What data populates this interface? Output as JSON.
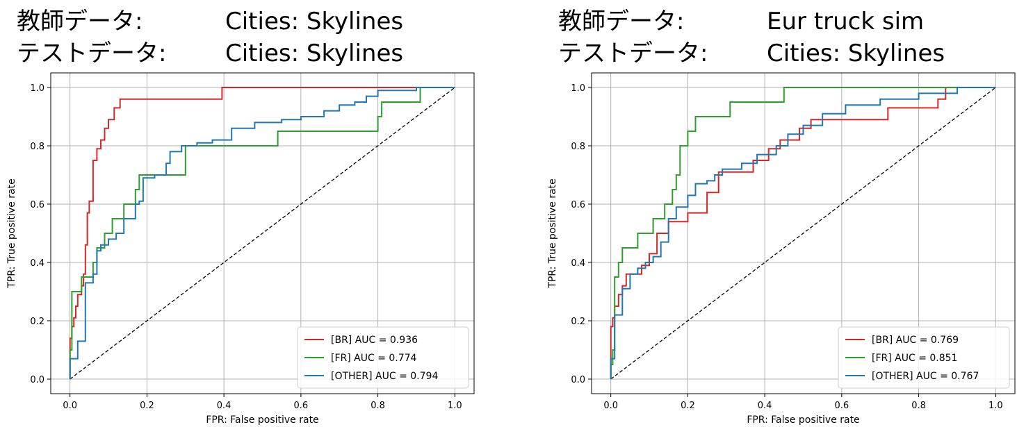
{
  "chart_data": [
    {
      "type": "line",
      "title_lines": [
        {
          "label": "教師データ:",
          "value": "Cities: Skylines"
        },
        {
          "label": "テストデータ:",
          "value": "Cities: Skylines"
        }
      ],
      "xlabel": "FPR: False positive rate",
      "ylabel": "TPR: True positive rate",
      "xlim": [
        -0.05,
        1.05
      ],
      "ylim": [
        -0.05,
        1.05
      ],
      "xticks": [
        0.0,
        0.2,
        0.4,
        0.6,
        0.8,
        1.0
      ],
      "yticks": [
        0.0,
        0.2,
        0.4,
        0.6,
        0.8,
        1.0
      ],
      "xtick_labels": [
        "0.0",
        "0.2",
        "0.4",
        "0.6",
        "0.8",
        "1.0"
      ],
      "ytick_labels": [
        "0.0",
        "0.2",
        "0.4",
        "0.6",
        "0.8",
        "1.0"
      ],
      "grid": true,
      "legend_position": "bottom-right",
      "diagonal": {
        "x": [
          0,
          1
        ],
        "y": [
          0,
          1
        ],
        "color": "#000000",
        "style": "dashed"
      },
      "series": [
        {
          "name": "[BR] AUC = 0.936",
          "color": "#d62728",
          "x": [
            0.0,
            0.0,
            0.005,
            0.005,
            0.01,
            0.01,
            0.015,
            0.015,
            0.02,
            0.02,
            0.03,
            0.03,
            0.035,
            0.035,
            0.04,
            0.04,
            0.045,
            0.045,
            0.05,
            0.05,
            0.06,
            0.06,
            0.07,
            0.07,
            0.08,
            0.08,
            0.09,
            0.09,
            0.1,
            0.1,
            0.115,
            0.115,
            0.13,
            0.13,
            0.145,
            0.145,
            0.155,
            0.155,
            0.395,
            0.395,
            0.8,
            0.8,
            1.0
          ],
          "y": [
            0.0,
            0.14,
            0.14,
            0.18,
            0.18,
            0.21,
            0.21,
            0.25,
            0.25,
            0.29,
            0.29,
            0.32,
            0.32,
            0.36,
            0.36,
            0.46,
            0.46,
            0.57,
            0.57,
            0.61,
            0.61,
            0.75,
            0.75,
            0.79,
            0.79,
            0.82,
            0.82,
            0.86,
            0.86,
            0.89,
            0.89,
            0.93,
            0.93,
            0.96,
            0.96,
            0.96,
            0.96,
            0.96,
            0.96,
            1.0,
            1.0,
            1.0,
            1.0
          ]
        },
        {
          "name": "[FR] AUC = 0.774",
          "color": "#2ca02c",
          "x": [
            0.0,
            0.0,
            0.005,
            0.005,
            0.03,
            0.03,
            0.06,
            0.06,
            0.07,
            0.07,
            0.09,
            0.09,
            0.11,
            0.11,
            0.14,
            0.14,
            0.17,
            0.17,
            0.18,
            0.18,
            0.2,
            0.2,
            0.3,
            0.3,
            0.54,
            0.54,
            0.8,
            0.8,
            0.81,
            0.81,
            0.91,
            0.91,
            1.0
          ],
          "y": [
            0.0,
            0.1,
            0.1,
            0.3,
            0.3,
            0.35,
            0.35,
            0.4,
            0.4,
            0.45,
            0.45,
            0.5,
            0.5,
            0.55,
            0.55,
            0.6,
            0.6,
            0.65,
            0.65,
            0.7,
            0.7,
            0.7,
            0.7,
            0.8,
            0.8,
            0.85,
            0.85,
            0.9,
            0.9,
            0.95,
            0.95,
            1.0,
            1.0
          ]
        },
        {
          "name": "[OTHER] AUC = 0.794",
          "color": "#1f77b4",
          "x": [
            0.0,
            0.0,
            0.02,
            0.02,
            0.04,
            0.04,
            0.06,
            0.06,
            0.07,
            0.07,
            0.08,
            0.08,
            0.1,
            0.1,
            0.12,
            0.12,
            0.14,
            0.14,
            0.17,
            0.17,
            0.18,
            0.18,
            0.19,
            0.19,
            0.22,
            0.22,
            0.25,
            0.25,
            0.26,
            0.26,
            0.29,
            0.29,
            0.33,
            0.33,
            0.37,
            0.37,
            0.42,
            0.42,
            0.48,
            0.48,
            0.55,
            0.55,
            0.6,
            0.6,
            0.66,
            0.66,
            0.7,
            0.7,
            0.74,
            0.74,
            0.77,
            0.77,
            0.8,
            0.8,
            0.9,
            0.9,
            1.0
          ],
          "y": [
            0.0,
            0.07,
            0.07,
            0.13,
            0.13,
            0.33,
            0.33,
            0.36,
            0.36,
            0.44,
            0.44,
            0.46,
            0.46,
            0.48,
            0.48,
            0.5,
            0.5,
            0.55,
            0.55,
            0.6,
            0.6,
            0.61,
            0.61,
            0.69,
            0.69,
            0.7,
            0.7,
            0.74,
            0.74,
            0.78,
            0.78,
            0.8,
            0.8,
            0.81,
            0.81,
            0.82,
            0.82,
            0.86,
            0.86,
            0.88,
            0.88,
            0.89,
            0.89,
            0.9,
            0.9,
            0.92,
            0.92,
            0.94,
            0.94,
            0.95,
            0.95,
            0.97,
            0.97,
            0.99,
            0.99,
            1.0,
            1.0
          ]
        }
      ]
    },
    {
      "type": "line",
      "title_lines": [
        {
          "label": "教師データ:",
          "value": "Eur truck sim"
        },
        {
          "label": "テストデータ:",
          "value": "Cities: Skylines"
        }
      ],
      "xlabel": "FPR: False positive rate",
      "ylabel": "TPR: True positive rate",
      "xlim": [
        -0.05,
        1.05
      ],
      "ylim": [
        -0.05,
        1.05
      ],
      "xticks": [
        0.0,
        0.2,
        0.4,
        0.6,
        0.8,
        1.0
      ],
      "yticks": [
        0.0,
        0.2,
        0.4,
        0.6,
        0.8,
        1.0
      ],
      "xtick_labels": [
        "0.0",
        "0.2",
        "0.4",
        "0.6",
        "0.8",
        "1.0"
      ],
      "ytick_labels": [
        "0.0",
        "0.2",
        "0.4",
        "0.6",
        "0.8",
        "1.0"
      ],
      "grid": true,
      "legend_position": "bottom-right",
      "diagonal": {
        "x": [
          0,
          1
        ],
        "y": [
          0,
          1
        ],
        "color": "#000000",
        "style": "dashed"
      },
      "series": [
        {
          "name": "[BR] AUC = 0.769",
          "color": "#d62728",
          "x": [
            0.0,
            0.0,
            0.005,
            0.005,
            0.01,
            0.01,
            0.02,
            0.02,
            0.03,
            0.03,
            0.04,
            0.04,
            0.08,
            0.08,
            0.1,
            0.1,
            0.12,
            0.12,
            0.15,
            0.15,
            0.2,
            0.2,
            0.25,
            0.25,
            0.28,
            0.28,
            0.37,
            0.37,
            0.41,
            0.41,
            0.44,
            0.44,
            0.49,
            0.49,
            0.52,
            0.52,
            0.6,
            0.6,
            0.72,
            0.72,
            0.85,
            0.85,
            0.87,
            0.87,
            1.0
          ],
          "y": [
            0.0,
            0.18,
            0.18,
            0.21,
            0.21,
            0.25,
            0.25,
            0.29,
            0.29,
            0.32,
            0.32,
            0.36,
            0.36,
            0.39,
            0.39,
            0.43,
            0.43,
            0.5,
            0.5,
            0.54,
            0.54,
            0.57,
            0.57,
            0.64,
            0.64,
            0.71,
            0.71,
            0.75,
            0.75,
            0.79,
            0.79,
            0.82,
            0.82,
            0.86,
            0.86,
            0.89,
            0.89,
            0.89,
            0.89,
            0.93,
            0.93,
            0.96,
            0.96,
            1.0,
            1.0
          ]
        },
        {
          "name": "[FR] AUC = 0.851",
          "color": "#2ca02c",
          "x": [
            0.0,
            0.0,
            0.005,
            0.005,
            0.01,
            0.01,
            0.02,
            0.02,
            0.03,
            0.03,
            0.07,
            0.07,
            0.11,
            0.11,
            0.14,
            0.14,
            0.16,
            0.16,
            0.17,
            0.17,
            0.18,
            0.18,
            0.2,
            0.2,
            0.22,
            0.22,
            0.31,
            0.31,
            0.45,
            0.45,
            0.59,
            0.59,
            1.0
          ],
          "y": [
            0.0,
            0.05,
            0.05,
            0.1,
            0.1,
            0.35,
            0.35,
            0.4,
            0.4,
            0.45,
            0.45,
            0.5,
            0.5,
            0.55,
            0.55,
            0.6,
            0.6,
            0.65,
            0.65,
            0.7,
            0.7,
            0.8,
            0.8,
            0.85,
            0.85,
            0.9,
            0.9,
            0.95,
            0.95,
            1.0,
            1.0,
            1.0,
            1.0
          ]
        },
        {
          "name": "[OTHER] AUC = 0.767",
          "color": "#1f77b4",
          "x": [
            0.0,
            0.0,
            0.01,
            0.01,
            0.03,
            0.03,
            0.05,
            0.05,
            0.07,
            0.07,
            0.09,
            0.09,
            0.11,
            0.11,
            0.13,
            0.13,
            0.15,
            0.15,
            0.17,
            0.17,
            0.2,
            0.2,
            0.22,
            0.22,
            0.25,
            0.25,
            0.27,
            0.27,
            0.29,
            0.29,
            0.34,
            0.34,
            0.38,
            0.38,
            0.43,
            0.43,
            0.46,
            0.46,
            0.5,
            0.5,
            0.55,
            0.55,
            0.61,
            0.61,
            0.7,
            0.7,
            0.8,
            0.8,
            0.9,
            0.9,
            1.0
          ],
          "y": [
            0.0,
            0.07,
            0.07,
            0.22,
            0.22,
            0.31,
            0.31,
            0.36,
            0.36,
            0.38,
            0.38,
            0.4,
            0.4,
            0.42,
            0.42,
            0.47,
            0.47,
            0.55,
            0.55,
            0.59,
            0.59,
            0.63,
            0.63,
            0.67,
            0.67,
            0.68,
            0.68,
            0.7,
            0.7,
            0.72,
            0.72,
            0.74,
            0.74,
            0.77,
            0.77,
            0.8,
            0.8,
            0.84,
            0.84,
            0.87,
            0.87,
            0.91,
            0.91,
            0.94,
            0.94,
            0.96,
            0.96,
            0.98,
            0.98,
            1.0,
            1.0
          ]
        }
      ]
    }
  ]
}
